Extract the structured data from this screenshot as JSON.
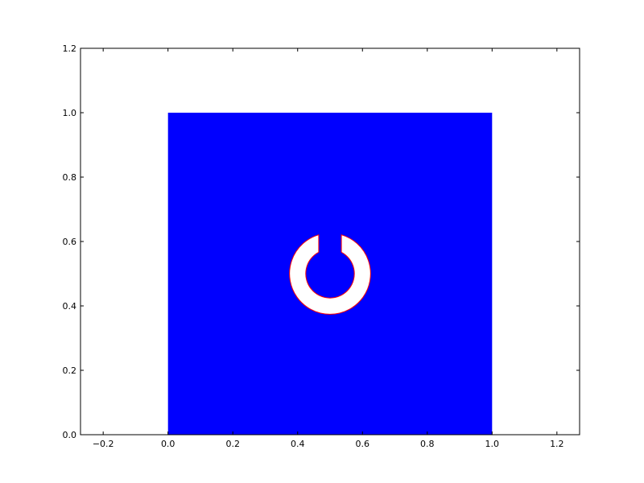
{
  "chart_data": {
    "type": "area",
    "title": "",
    "xlabel": "",
    "ylabel": "",
    "xlim": [
      -0.27,
      1.27
    ],
    "ylim": [
      0.0,
      1.2
    ],
    "x_ticks": [
      -0.2,
      0.0,
      0.2,
      0.4,
      0.6,
      0.8,
      1.0,
      1.2
    ],
    "x_tick_labels": [
      "−0.2",
      "0.0",
      "0.2",
      "0.4",
      "0.6",
      "0.8",
      "1.0",
      "1.2"
    ],
    "y_ticks": [
      0.0,
      0.2,
      0.4,
      0.6,
      0.8,
      1.0,
      1.2
    ],
    "y_tick_labels": [
      "0.0",
      "0.2",
      "0.4",
      "0.6",
      "0.8",
      "1.0",
      "1.2"
    ],
    "grid": false,
    "square_region": {
      "x": [
        0.0,
        1.0
      ],
      "y": [
        0.0,
        1.0
      ],
      "fill_color": "#0000ff"
    },
    "split_ring_hole": {
      "center": [
        0.5,
        0.5
      ],
      "outer_radius": 0.125,
      "inner_radius": 0.075,
      "gap_center_x": 0.5,
      "gap_half_width": 0.035,
      "gap_opening": "top",
      "fill_color": "#ffffff",
      "edge_color": "#ff0000"
    }
  }
}
